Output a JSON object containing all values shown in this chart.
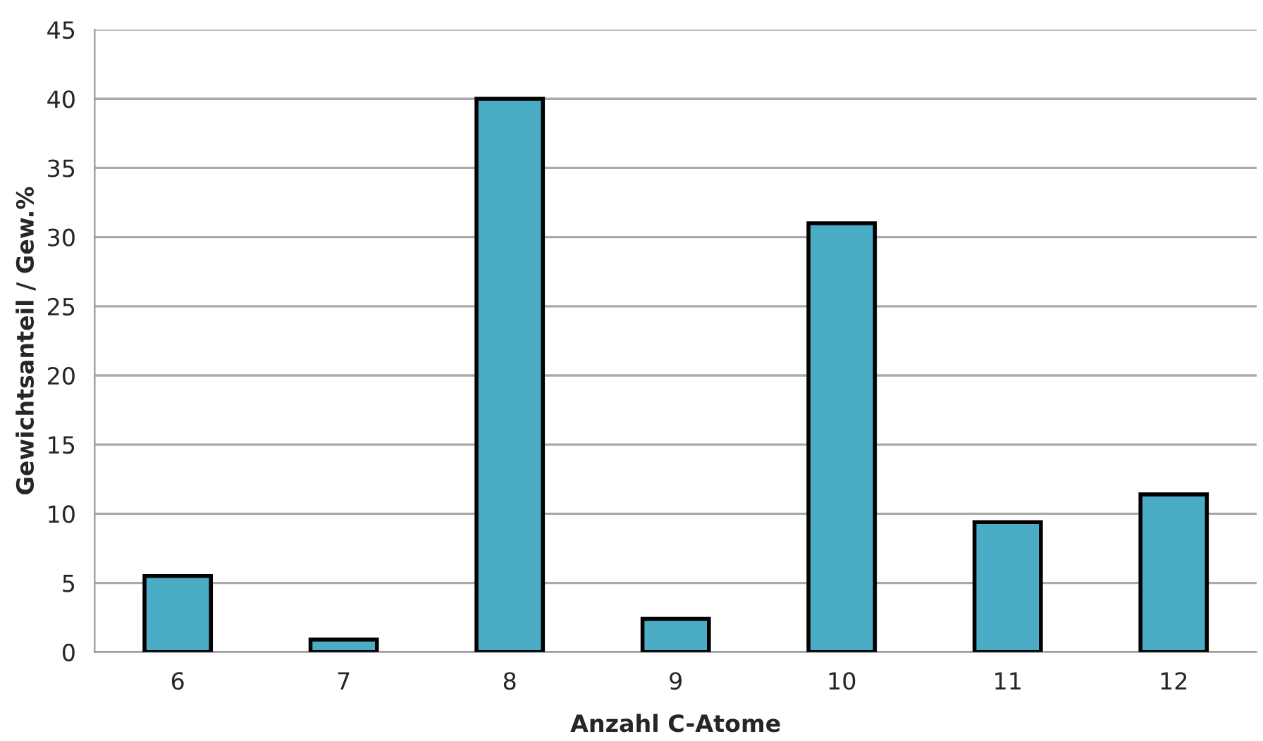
{
  "chart_data": {
    "type": "bar",
    "xlabel": "Anzahl C-Atome",
    "ylabel": "Gewichtsanteil / Gew.%",
    "categories": [
      "6",
      "7",
      "8",
      "9",
      "10",
      "11",
      "12"
    ],
    "values": [
      5.5,
      0.9,
      40,
      2.4,
      31,
      9.4,
      11.4
    ],
    "color": "#4bacc6",
    "ylim": [
      0,
      45
    ],
    "yticks": [
      0,
      5,
      10,
      15,
      20,
      25,
      30,
      35,
      40,
      45
    ],
    "grid": "y",
    "legend": false
  }
}
